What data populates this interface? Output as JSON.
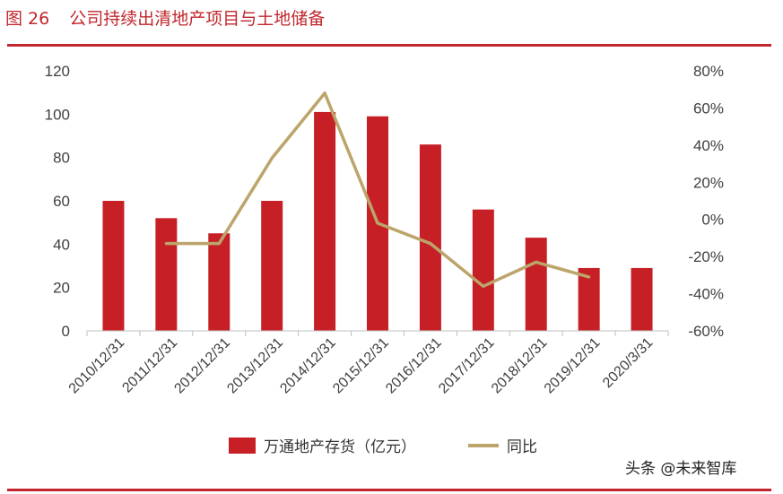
{
  "figure": {
    "number": "图 26",
    "caption": "公司持续出清地产项目与土地储备"
  },
  "watermark": "头条 @未来智库",
  "colors": {
    "title": "#c1272d",
    "bar": "#c62026",
    "line": "#bca46a",
    "axis": "#bfbfbf",
    "tick_text": "#404040"
  },
  "chart_data": {
    "type": "bar",
    "categories": [
      "2010/12/31",
      "2011/12/31",
      "2012/12/31",
      "2013/12/31",
      "2014/12/31",
      "2015/12/31",
      "2016/12/31",
      "2017/12/31",
      "2018/12/31",
      "2019/12/31",
      "2020/3/31"
    ],
    "series": [
      {
        "name": "万通地产存货（亿元）",
        "type": "bar",
        "axis": "left",
        "values": [
          60,
          52,
          45,
          60,
          101,
          99,
          86,
          56,
          43,
          29,
          29
        ]
      },
      {
        "name": "同比",
        "type": "line",
        "axis": "right",
        "values": [
          null,
          -13,
          -13,
          33,
          68,
          -2,
          -13,
          -36,
          -23,
          -31,
          null
        ]
      }
    ],
    "ylim": [
      0,
      120
    ],
    "yticks": [
      0,
      20,
      40,
      60,
      80,
      100,
      120
    ],
    "y2lim": [
      -60,
      80
    ],
    "y2ticks": [
      "-60%",
      "-40%",
      "-20%",
      "0%",
      "20%",
      "40%",
      "60%",
      "80%"
    ],
    "legend": "bottom",
    "grid": false
  }
}
